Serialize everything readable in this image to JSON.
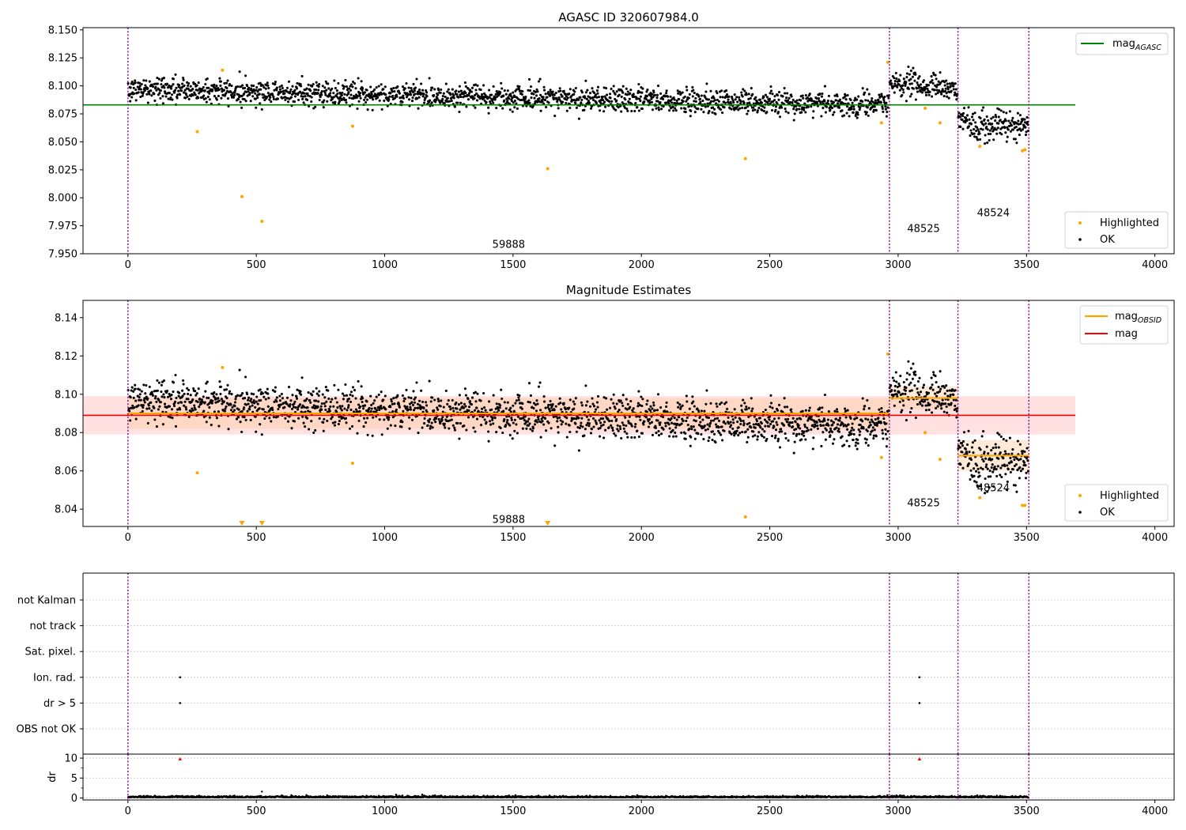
{
  "colors": {
    "ok": "#000000",
    "highlight": "#ffa500",
    "agasc": "#008000",
    "mag": "#ff0000",
    "obsid": "#ffa500",
    "band_mag": "#ffb3b3",
    "band_obsid": "#ffc89a",
    "boundary": "#800080",
    "grid": "#b0b0b0",
    "flag_point": "#000000",
    "clip_marker": "#ff0000"
  },
  "chart_data": [
    {
      "type": "scatter",
      "title": "AGASC ID 320607984.0",
      "xlim": [
        -175,
        4075
      ],
      "ylim": [
        7.95,
        8.152
      ],
      "x_ticks": [
        0,
        500,
        1000,
        1500,
        2000,
        2500,
        3000,
        3500,
        4000
      ],
      "y_ticks": [
        7.95,
        7.975,
        8.0,
        8.025,
        8.05,
        8.075,
        8.1,
        8.125,
        8.15
      ],
      "y_tick_labels": [
        "7.950",
        "7.975",
        "8.000",
        "8.025",
        "8.050",
        "8.075",
        "8.100",
        "8.125",
        "8.150"
      ],
      "obsid_boundaries": [
        0,
        2966,
        3233,
        3509
      ],
      "obsid_labels": [
        {
          "text": "59888",
          "x": 1483,
          "y": 7.959
        },
        {
          "text": "48525",
          "x": 3099,
          "y": 7.973
        },
        {
          "text": "48524",
          "x": 3371,
          "y": 7.987
        }
      ],
      "segments": [
        {
          "x0": 0,
          "x1": 2966,
          "start": 8.097,
          "end": 8.083,
          "spread": 0.0055
        },
        {
          "x0": 2966,
          "x1": 3233,
          "start": 8.103,
          "end": 8.096,
          "spread": 0.0055
        },
        {
          "x0": 3233,
          "x1": 3509,
          "start": 8.068,
          "end": 8.063,
          "spread": 0.0065
        }
      ],
      "highlighted": [
        [
          270,
          8.059
        ],
        [
          368,
          8.114
        ],
        [
          444,
          8.001
        ],
        [
          522,
          7.979
        ],
        [
          875,
          8.064
        ],
        [
          1635,
          8.026
        ],
        [
          2405,
          8.035
        ],
        [
          2935,
          8.067
        ],
        [
          3105,
          8.08
        ],
        [
          3163,
          8.067
        ],
        [
          3318,
          8.046
        ],
        [
          3484,
          8.042
        ],
        [
          3494,
          8.043
        ],
        [
          2960,
          8.121
        ]
      ],
      "lines": [
        {
          "name": "mag",
          "subscript": "AGASC",
          "y": 8.083,
          "x0": -175,
          "x1": 3690,
          "color": "#008000"
        }
      ],
      "legend_lines": [
        {
          "name": "mag",
          "subscript": "AGASC"
        }
      ],
      "legend_points": [
        "Highlighted",
        "OK"
      ]
    },
    {
      "type": "scatter",
      "title": "Magnitude Estimates",
      "xlim": [
        -175,
        4075
      ],
      "ylim": [
        8.031,
        8.149
      ],
      "x_ticks": [
        0,
        500,
        1000,
        1500,
        2000,
        2500,
        3000,
        3500,
        4000
      ],
      "y_ticks": [
        8.04,
        8.06,
        8.08,
        8.1,
        8.12,
        8.14
      ],
      "y_tick_labels": [
        "8.04",
        "8.06",
        "8.08",
        "8.10",
        "8.12",
        "8.14"
      ],
      "obsid_boundaries": [
        0,
        2966,
        3233,
        3509
      ],
      "obsid_labels": [
        {
          "text": "59888",
          "x": 1483,
          "y": 8.035
        },
        {
          "text": "48525",
          "x": 3099,
          "y": 8.0435
        },
        {
          "text": "48524",
          "x": 3371,
          "y": 8.0515
        }
      ],
      "segments": [
        {
          "x0": 0,
          "x1": 2966,
          "start": 8.097,
          "end": 8.083,
          "spread": 0.0055
        },
        {
          "x0": 2966,
          "x1": 3233,
          "start": 8.103,
          "end": 8.096,
          "spread": 0.0055
        },
        {
          "x0": 3233,
          "x1": 3509,
          "start": 8.068,
          "end": 8.063,
          "spread": 0.0065
        }
      ],
      "highlighted": [
        [
          270,
          8.059
        ],
        [
          368,
          8.114
        ],
        [
          875,
          8.064
        ],
        [
          2405,
          8.036
        ],
        [
          2935,
          8.067
        ],
        [
          3105,
          8.08
        ],
        [
          3163,
          8.066
        ],
        [
          3318,
          8.046
        ],
        [
          3484,
          8.042
        ],
        [
          3494,
          8.042
        ],
        [
          2960,
          8.121
        ]
      ],
      "clipped": [
        444,
        522,
        1635
      ],
      "mag_line": {
        "y": 8.089,
        "x0": -175,
        "x1": 3690,
        "band": [
          8.079,
          8.099
        ]
      },
      "obsid_lines": [
        {
          "x0": 0,
          "x1": 2966,
          "y": 8.09,
          "band": [
            8.082,
            8.098
          ]
        },
        {
          "x0": 2966,
          "x1": 3233,
          "y": 8.098,
          "band": [
            8.092,
            8.104
          ]
        },
        {
          "x0": 3233,
          "x1": 3509,
          "y": 8.068,
          "band": [
            8.06,
            8.076
          ]
        }
      ],
      "legend_lines": [
        {
          "name": "mag",
          "subscript": "OBSID"
        },
        {
          "name": "mag",
          "subscript": ""
        }
      ],
      "legend_points": [
        "Highlighted",
        "OK"
      ]
    },
    {
      "type": "scatter",
      "xlim": [
        -175,
        4075
      ],
      "x_ticks": [
        0,
        500,
        1000,
        1500,
        2000,
        2500,
        3000,
        3500,
        4000
      ],
      "obsid_boundaries": [
        0,
        2966,
        3233,
        3509
      ],
      "flag_categories": [
        "not Kalman",
        "not track",
        "Sat. pixel.",
        "Ion. rad.",
        "dr > 5",
        "OBS not OK"
      ],
      "flag_points": [
        {
          "category": "Ion. rad.",
          "x": 203
        },
        {
          "category": "dr > 5",
          "x": 203
        },
        {
          "category": "Ion. rad.",
          "x": 3083
        },
        {
          "category": "dr > 5",
          "x": 3083
        }
      ],
      "dr": {
        "ylabel": "dr",
        "ylim": [
          -0.5,
          11
        ],
        "y_ticks": [
          0,
          5,
          10
        ],
        "y_tick_labels": [
          "0",
          "5",
          "10"
        ],
        "clipped_x": [
          203,
          3083
        ],
        "outliers": [
          [
            522,
            1.6
          ]
        ]
      }
    }
  ]
}
